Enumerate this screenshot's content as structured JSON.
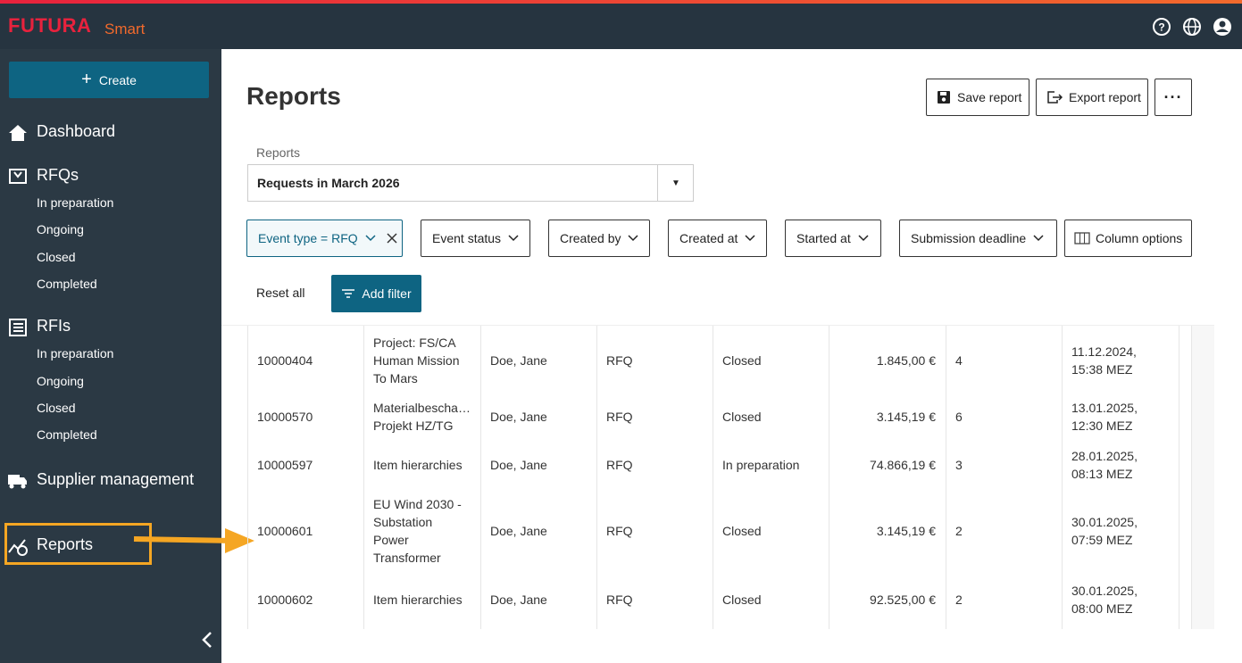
{
  "header": {
    "brand": "FUTURA",
    "brand_suffix": "Smart"
  },
  "sidebar": {
    "create": "Create",
    "nav": [
      {
        "label": "Dashboard",
        "children": []
      },
      {
        "label": "RFQs",
        "children": [
          "In preparation",
          "Ongoing",
          "Closed",
          "Completed"
        ]
      },
      {
        "label": "RFIs",
        "children": [
          "In preparation",
          "Ongoing",
          "Closed",
          "Completed"
        ]
      },
      {
        "label": "Supplier management",
        "children": []
      },
      {
        "label": "Reports",
        "children": []
      }
    ]
  },
  "page": {
    "title": "Reports",
    "actions": [
      "Save report",
      "Export report"
    ],
    "report_label": "Reports",
    "report_selected": "Requests in March 2026",
    "filters": [
      "Event type = RFQ",
      "Event status",
      "Created by",
      "Created at",
      "Started at",
      "Submission deadline"
    ],
    "column_options": "Column options",
    "reset": "Reset all",
    "add_filter": "Add filter"
  },
  "table": {
    "rows": [
      [
        "10000404",
        "Project: FS/CA\nHuman Mission\nTo Mars",
        "Doe, Jane",
        "RFQ",
        "Closed",
        "1.845,00 €",
        "4",
        "11.12.2024,\n15:38 MEZ"
      ],
      [
        "10000570",
        "Materialbescha…\nProjekt HZ/TG",
        "Doe, Jane",
        "RFQ",
        "Closed",
        "3.145,19 €",
        "6",
        "13.01.2025,\n12:30 MEZ"
      ],
      [
        "10000597",
        "Item hierarchies",
        "Doe, Jane",
        "RFQ",
        "In preparation",
        "74.866,19 €",
        "3",
        "28.01.2025,\n08:13 MEZ"
      ],
      [
        "10000601",
        "EU Wind 2030 -\nSubstation\nPower\nTransformer",
        "Doe, Jane",
        "RFQ",
        "Closed",
        "3.145,19 €",
        "2",
        "30.01.2025,\n07:59 MEZ"
      ],
      [
        "10000602",
        "Item hierarchies",
        "Doe, Jane",
        "RFQ",
        "Closed",
        "92.525,00 €",
        "2",
        "30.01.2025,\n08:00 MEZ"
      ]
    ]
  }
}
